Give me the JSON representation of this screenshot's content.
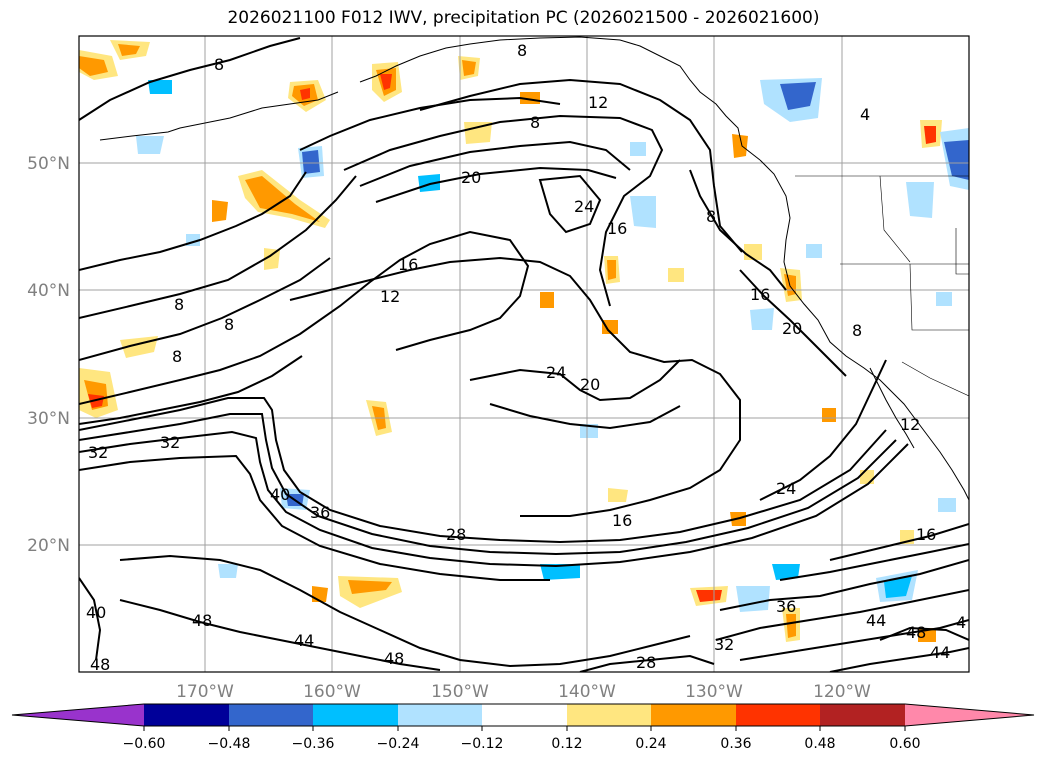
{
  "title": "2026021100 F012 IWV, precipitation PC (2026021500 - 2026021600)",
  "lat_labels": [
    "50°N",
    "40°N",
    "30°N",
    "20°N"
  ],
  "lon_labels": [
    "170°W",
    "160°W",
    "150°W",
    "140°W",
    "130°W",
    "120°W"
  ],
  "colorbar": {
    "colors": [
      "#9933cc",
      "#000099",
      "#3366cc",
      "#00bfff",
      "#b0e2ff",
      "#ffffff",
      "#ffe680",
      "#ff9900",
      "#ff3300",
      "#b22222",
      "#ff88aa"
    ],
    "ticks": [
      "−0.60",
      "−0.48",
      "−0.36",
      "−0.24",
      "−0.12",
      "0.12",
      "0.24",
      "0.36",
      "0.48",
      "0.60"
    ],
    "extend": "both"
  },
  "contour_labels": [
    "8",
    "8",
    "12",
    "8",
    "20",
    "24",
    "16",
    "16",
    "12",
    "8",
    "8",
    "8",
    "24",
    "20",
    "16",
    "20",
    "8",
    "4",
    "8",
    "32",
    "32",
    "40",
    "36",
    "28",
    "16",
    "24",
    "12",
    "16",
    "40",
    "48",
    "44",
    "48",
    "28",
    "32",
    "36",
    "44",
    "48",
    "4",
    "44",
    "48"
  ]
}
